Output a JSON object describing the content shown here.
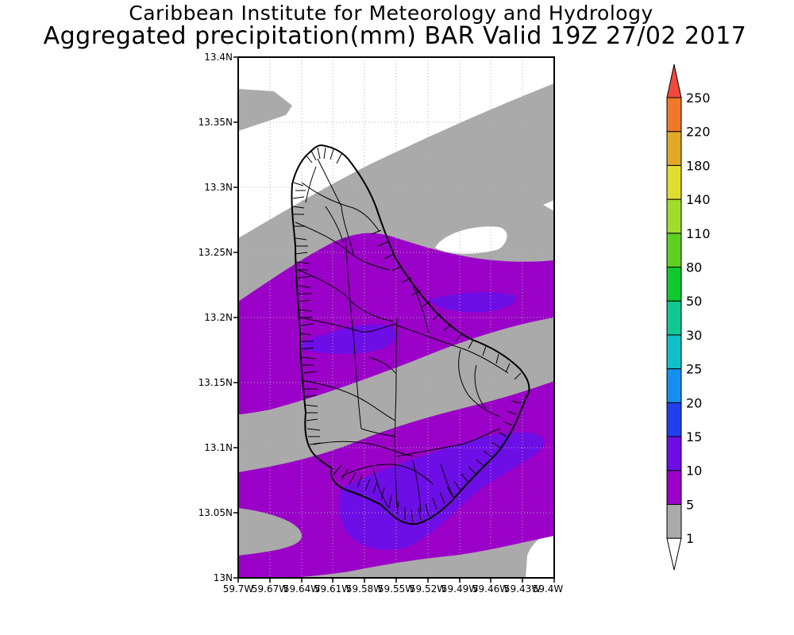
{
  "header": {
    "title": "Caribbean Institute for Meteorology and Hydrology",
    "subtitle": "Aggregated precipitation(mm) BAR Valid 19Z 27/02 2017"
  },
  "map": {
    "lon_range": [
      -59.7,
      -59.4
    ],
    "lat_range": [
      13.0,
      13.4
    ],
    "lat_ticks": [
      "13N",
      "13.05N",
      "13.1N",
      "13.15N",
      "13.2N",
      "13.25N",
      "13.3N",
      "13.35N",
      "13.4N"
    ],
    "lon_ticks": [
      "59.7W",
      "59.67W",
      "59.64W",
      "59.61W",
      "59.58W",
      "59.55W",
      "59.52W",
      "59.49W",
      "59.46W",
      "59.43W",
      "59.4W"
    ],
    "grid": "dotted",
    "region": "Barbados"
  },
  "colorbar": {
    "labels": [
      "1",
      "5",
      "10",
      "15",
      "20",
      "25",
      "30",
      "50",
      "80",
      "110",
      "140",
      "180",
      "220",
      "250"
    ],
    "colors": [
      "#aaaaaa",
      "#9b00c8",
      "#6e0ee6",
      "#2040f0",
      "#1590f0",
      "#10c0c8",
      "#10c890",
      "#10c830",
      "#60d020",
      "#a0dc30",
      "#e0dc32",
      "#e0aa28",
      "#f07828",
      "#f04a3c",
      "#e80a78"
    ]
  }
}
